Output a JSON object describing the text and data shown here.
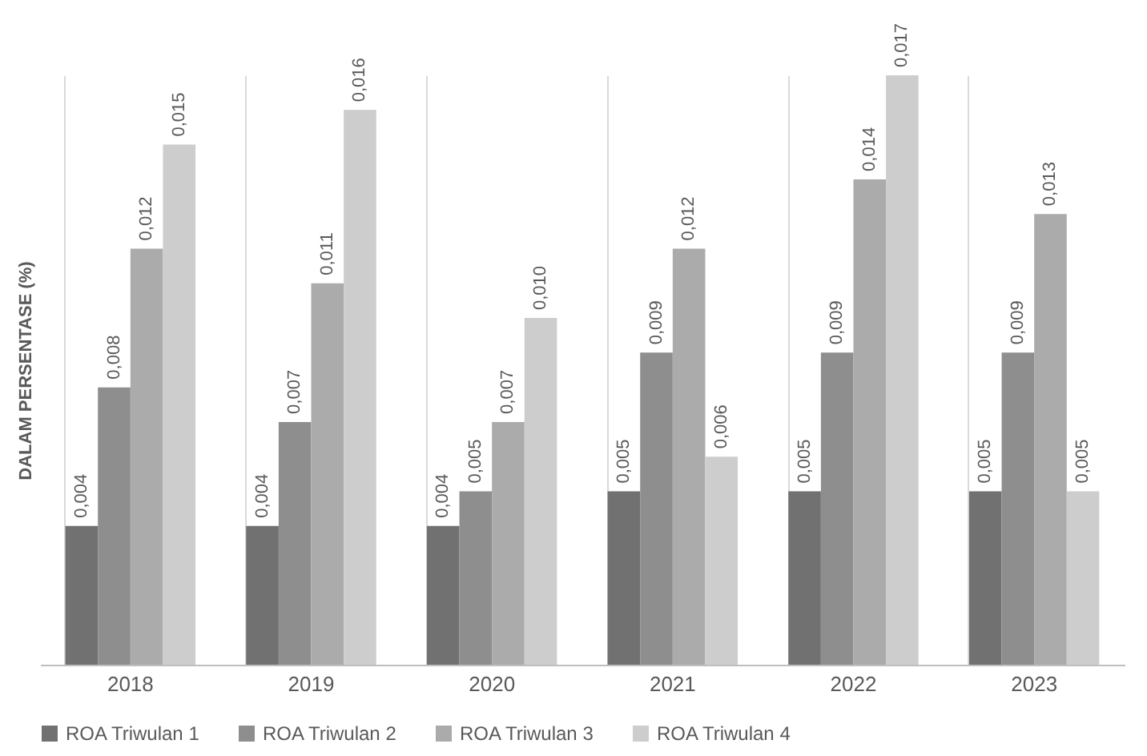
{
  "chart_data": {
    "type": "bar",
    "ylabel": "DALAM PERSENTASE (%)",
    "categories": [
      "2018",
      "2019",
      "2020",
      "2021",
      "2022",
      "2023"
    ],
    "series": [
      {
        "name": "ROA Triwulan 1",
        "color": "#717171",
        "values": [
          0.004,
          0.004,
          0.004,
          0.005,
          0.005,
          0.005
        ],
        "value_labels": [
          "0,004",
          "0,004",
          "0,004",
          "0,005",
          "0,005",
          "0,005"
        ]
      },
      {
        "name": "ROA Triwulan 2",
        "color": "#8e8e8e",
        "values": [
          0.008,
          0.007,
          0.005,
          0.009,
          0.009,
          0.009
        ],
        "value_labels": [
          "0,008",
          "0,007",
          "0,005",
          "0,009",
          "0,009",
          "0,009"
        ]
      },
      {
        "name": "ROA Triwulan 3",
        "color": "#ababab",
        "values": [
          0.012,
          0.011,
          0.007,
          0.012,
          0.014,
          0.013
        ],
        "value_labels": [
          "0,012",
          "0,011",
          "0,007",
          "0,012",
          "0,014",
          "0,013"
        ]
      },
      {
        "name": "ROA Triwulan 4",
        "color": "#cdcdcd",
        "values": [
          0.015,
          0.016,
          0.01,
          0.006,
          0.017,
          0.005
        ],
        "value_labels": [
          "0,015",
          "0,016",
          "0,010",
          "0,006",
          "0,017",
          "0,005"
        ]
      }
    ],
    "grid": "x",
    "legend": "bottom"
  }
}
